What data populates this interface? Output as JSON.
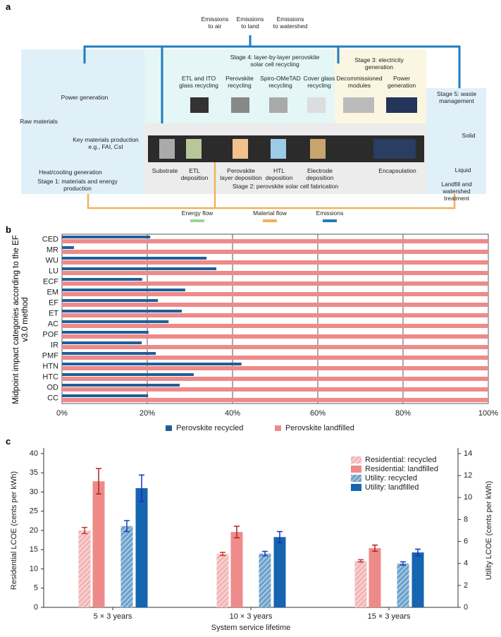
{
  "diagram": {
    "label": "a",
    "emissions": [
      "Emissions\nto air",
      "Emissions\nto land",
      "Emissions\nto watershed"
    ],
    "stage4": {
      "title": "Stage 4: layer-by-layer perovskite\nsolar cell recycling",
      "steps": [
        "ETL and ITO\nglass recycling",
        "Perovskite\nrecycling",
        "Spiro-OMeTAD\nrecycling",
        "Cover glass\nrecycling"
      ]
    },
    "stage3": {
      "title": "Stage 3: electricity\ngeneration",
      "steps": [
        "Decommissioned\nmodules",
        "Power\ngeneration"
      ]
    },
    "stage5": {
      "title": "Stage 5: waste\nmanagement",
      "solid": "Solid",
      "liquid": "Liquid",
      "treatment": "Landfill and\nwatershed treatment"
    },
    "stage1": {
      "power": "Power generation",
      "raw": "Raw materials",
      "key": "Key materials production\ne.g., FAI, CsI",
      "heat": "Heat/cooling generation",
      "title": "Stage 1: materials and energy\nproduction"
    },
    "stage2": {
      "title": "Stage 2: perovskite solar cell fabrication",
      "steps": [
        "Substrate",
        "ETL\ndeposition",
        "Perovskite\nlayer deposition",
        "HTL\ndeposition",
        "Electrode\ndeposition",
        "Encapsulation"
      ]
    },
    "legend": [
      "Energy flow",
      "Material flow",
      "Emissions"
    ]
  },
  "chart_data": [
    {
      "type": "bar",
      "label": "b",
      "orientation": "horizontal",
      "ylabel": "Midpoint impact categories according to the EF v3.0 method",
      "categories": [
        "CED",
        "MR",
        "WU",
        "LU",
        "ECF",
        "EM",
        "EF",
        "ET",
        "AC",
        "POF",
        "IR",
        "PMF",
        "HTN",
        "HTC",
        "OD",
        "CC"
      ],
      "series": [
        {
          "name": "Perovskite recycled",
          "color": "#1f5f99",
          "values": [
            20.7,
            2.8,
            33.9,
            36.2,
            18.8,
            28.9,
            22.5,
            28.1,
            25,
            20.3,
            18.7,
            22,
            42.1,
            30.9,
            27.6,
            20.2
          ]
        },
        {
          "name": "Perovskite landfilled",
          "color": "#ee8a8a",
          "values": [
            100,
            100,
            100,
            100,
            100,
            100,
            100,
            100,
            100,
            100,
            100,
            100,
            100,
            100,
            100,
            100
          ]
        }
      ],
      "xlim": [
        0,
        100
      ],
      "xticks": [
        {
          "value": 0,
          "label": "0%"
        },
        {
          "value": 20,
          "label": "20%"
        },
        {
          "value": 40,
          "label": "40%"
        },
        {
          "value": 60,
          "label": "60%"
        },
        {
          "value": 80,
          "label": "80%"
        },
        {
          "value": 100,
          "label": "100%"
        }
      ],
      "grid": true,
      "legend": "bottom"
    },
    {
      "type": "bar",
      "label": "c",
      "orientation": "vertical",
      "xlabel": "System service lifetime",
      "ylabel": "Residential LCOE (cents per kWh)",
      "y2label": "Utility LCOE (cents per kWh)",
      "categories": [
        "5 × 3 years",
        "10 × 3 years",
        "15 × 3 years"
      ],
      "series": [
        {
          "name": "Residential: recycled",
          "color": "#f4b6b6",
          "hatch": true,
          "error_color": "#c0392b",
          "values": [
            20.0,
            13.9,
            12.1
          ],
          "errors": [
            0.8,
            0.4,
            0.3
          ]
        },
        {
          "name": "Residential: landfilled",
          "color": "#ee8a8a",
          "hatch": false,
          "error_color": "#b22222",
          "values": [
            32.8,
            19.6,
            15.4
          ],
          "errors": [
            3.3,
            1.5,
            0.8
          ]
        },
        {
          "name": "Utility: recycled",
          "color": "#6ea3cc",
          "hatch": true,
          "axis": "y2",
          "error_color": "#1a3fb0",
          "values": [
            7.4,
            4.9,
            4.0
          ],
          "errors": [
            0.5,
            0.2,
            0.15
          ]
        },
        {
          "name": "Utility: landfilled",
          "color": "#1565b0",
          "hatch": false,
          "axis": "y2",
          "error_color": "#1a2fc0",
          "values": [
            10.85,
            6.4,
            5.0
          ],
          "errors": [
            1.2,
            0.5,
            0.3
          ]
        }
      ],
      "ylim": [
        0,
        40
      ],
      "yticks": [
        0,
        5,
        10,
        15,
        20,
        25,
        30,
        35,
        40
      ],
      "y2lim": [
        0,
        14
      ],
      "y2ticks": [
        0,
        2,
        4,
        6,
        8,
        10,
        12,
        14
      ],
      "legend": "upper right"
    }
  ]
}
